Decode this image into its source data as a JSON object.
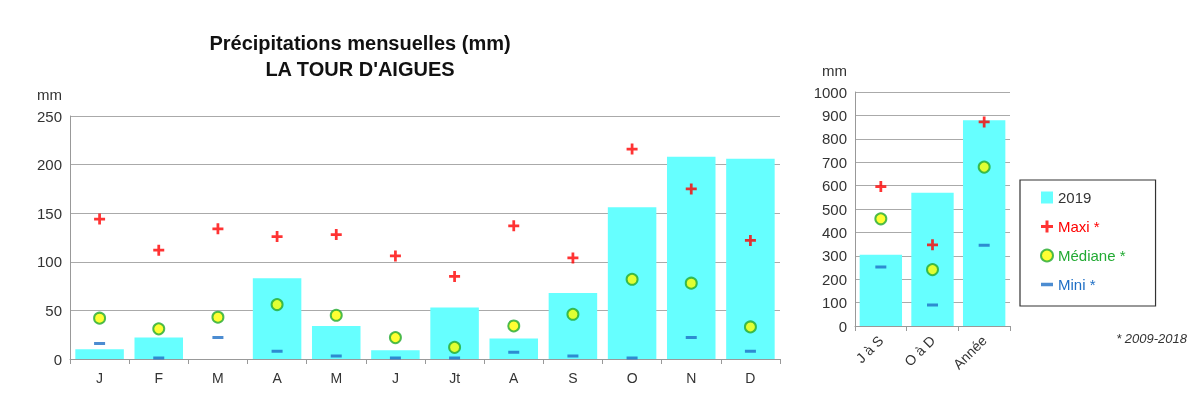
{
  "chart_data": [
    {
      "type": "bar",
      "title": "Précipitations mensuelles (mm)",
      "subtitle": "LA TOUR D'AIGUES",
      "ylabel": "mm",
      "categories": [
        "J",
        "F",
        "M",
        "A",
        "M",
        "J",
        "Jt",
        "A",
        "S",
        "O",
        "N",
        "D"
      ],
      "series": [
        {
          "color": "#66ffff",
          "values": [
            10,
            22,
            0,
            83,
            34,
            9,
            53,
            21,
            68,
            156,
            208,
            206
          ]
        },
        {
          "type": "scatter",
          "marker": "cross",
          "color": "#ff0000",
          "values": [
            144,
            112,
            134,
            126,
            128,
            106,
            85,
            137,
            104,
            216,
            175,
            122
          ]
        },
        {
          "type": "scatter",
          "marker": "circle",
          "color": "#ffff00",
          "values": [
            42,
            31,
            43,
            56,
            45,
            22,
            12,
            34,
            46,
            82,
            78,
            33
          ]
        },
        {
          "type": "scatter",
          "color": "#1f6fc5",
          "values": [
            16,
            1,
            22,
            8,
            3,
            1,
            1,
            7,
            3,
            1,
            22,
            8
          ]
        }
      ],
      "ylim": [
        0,
        250
      ],
      "yticks": [
        0,
        50,
        100,
        150,
        200,
        250
      ],
      "grid": "y",
      "legend": false
    },
    {
      "type": "bar",
      "ylabel": "mm",
      "categories": [
        "J à S",
        "O à D",
        "Année"
      ],
      "series": [
        {
          "name": "2019",
          "color": "#66ffff",
          "values": [
            305,
            569,
            879
          ]
        },
        {
          "name": "Maxi *",
          "type": "scatter",
          "marker": "cross",
          "color": "#ff0000",
          "values": [
            596,
            347,
            872
          ]
        },
        {
          "name": "Médiane *",
          "type": "scatter",
          "marker": "circle",
          "color": "#ffff00",
          "values": [
            458,
            241,
            679
          ]
        },
        {
          "name": "Mini *",
          "type": "scatter",
          "color": "#1f6fc5",
          "values": [
            252,
            90,
            345
          ]
        }
      ],
      "ylim": [
        0,
        1000
      ],
      "yticks": [
        0,
        100,
        200,
        300,
        400,
        500,
        600,
        700,
        800,
        900,
        {
          "value": 1000,
          "label": "1000"
        }
      ],
      "grid": "y",
      "legend": "right",
      "annotations": [
        "* 2009-2018"
      ]
    }
  ]
}
